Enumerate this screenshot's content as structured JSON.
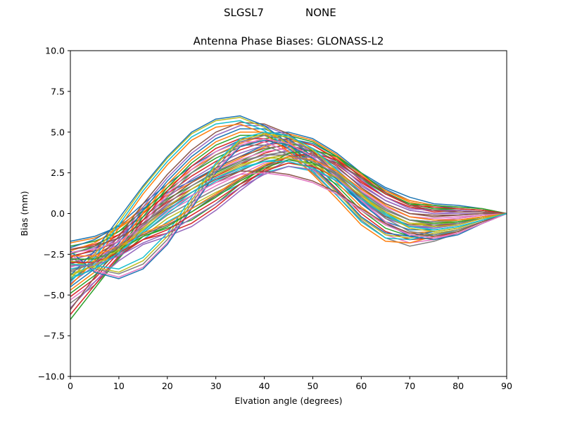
{
  "header": {
    "station": "SLGSL7",
    "radome": "NONE"
  },
  "chart_data": {
    "type": "line",
    "title": "Antenna Phase Biases: GLONASS-L2",
    "xlabel": "Elvation angle (degrees)",
    "ylabel": "Bias (mm)",
    "xlim": [
      0,
      90
    ],
    "ylim": [
      -10,
      10
    ],
    "xticks": [
      0,
      10,
      20,
      30,
      40,
      50,
      60,
      70,
      80,
      90
    ],
    "yticks": [
      -10.0,
      -7.5,
      -5.0,
      -2.5,
      0.0,
      2.5,
      5.0,
      7.5,
      10.0
    ],
    "ytick_labels": [
      "−10.0",
      "−7.5",
      "−5.0",
      "−2.5",
      "0.0",
      "2.5",
      "5.0",
      "7.5",
      "10.0"
    ],
    "grid": false,
    "x": [
      0,
      5,
      10,
      15,
      20,
      25,
      30,
      35,
      40,
      45,
      50,
      55,
      60,
      65,
      70,
      75,
      80,
      85,
      90
    ],
    "colors": [
      "#1f77b4",
      "#ff7f0e",
      "#2ca02c",
      "#d62728",
      "#9467bd",
      "#8c564b",
      "#e377c2",
      "#7f7f7f",
      "#bcbd22",
      "#17becf"
    ],
    "series": [
      {
        "values": [
          -1.7,
          -1.4,
          -0.8,
          0.3,
          1.3,
          2.0,
          2.8,
          3.5,
          4.2,
          4.6,
          4.3,
          3.5,
          2.4,
          1.5,
          0.8,
          0.5,
          0.3,
          0.2,
          0.0
        ]
      },
      {
        "values": [
          -1.8,
          -1.5,
          -0.9,
          0.1,
          1.1,
          1.9,
          2.7,
          3.4,
          4.1,
          4.5,
          4.2,
          3.4,
          2.3,
          1.4,
          0.7,
          0.4,
          0.3,
          0.2,
          0.0
        ]
      },
      {
        "values": [
          -2.0,
          -1.7,
          -1.1,
          -0.2,
          0.9,
          1.7,
          2.5,
          3.2,
          3.9,
          4.3,
          4.0,
          3.2,
          2.1,
          1.2,
          0.6,
          0.3,
          0.2,
          0.1,
          0.0
        ]
      },
      {
        "values": [
          -2.2,
          -1.9,
          -1.3,
          -0.4,
          0.7,
          1.5,
          2.3,
          3.0,
          3.7,
          4.1,
          3.8,
          3.0,
          1.9,
          1.0,
          0.4,
          0.2,
          0.1,
          0.1,
          0.0
        ]
      },
      {
        "values": [
          -2.4,
          -2.1,
          -1.5,
          -0.6,
          0.5,
          1.3,
          2.1,
          2.8,
          3.5,
          3.9,
          3.6,
          2.8,
          1.7,
          0.8,
          0.2,
          0.0,
          0.0,
          0.0,
          0.0
        ]
      },
      {
        "values": [
          -2.6,
          -2.3,
          -1.7,
          -0.8,
          0.3,
          1.1,
          1.9,
          2.6,
          3.3,
          3.7,
          3.4,
          2.6,
          1.5,
          0.6,
          0.0,
          -0.1,
          -0.1,
          0.0,
          0.0
        ]
      },
      {
        "values": [
          -2.8,
          -2.5,
          -1.9,
          -1.0,
          0.1,
          0.9,
          1.7,
          2.4,
          3.1,
          3.5,
          3.2,
          2.4,
          1.3,
          0.4,
          -0.2,
          -0.3,
          -0.2,
          -0.1,
          0.0
        ]
      },
      {
        "values": [
          -3.0,
          -2.7,
          -2.1,
          -1.2,
          -0.1,
          0.7,
          1.5,
          2.2,
          2.9,
          3.3,
          3.0,
          2.2,
          1.1,
          0.2,
          -0.4,
          -0.5,
          -0.3,
          -0.1,
          0.0
        ]
      },
      {
        "values": [
          -3.2,
          -2.9,
          -2.3,
          -1.4,
          -0.3,
          0.5,
          1.3,
          2.0,
          2.7,
          3.1,
          2.8,
          2.0,
          0.9,
          0.0,
          -0.6,
          -0.6,
          -0.4,
          -0.2,
          0.0
        ]
      },
      {
        "values": [
          -3.4,
          -3.1,
          -2.5,
          -1.6,
          -0.5,
          0.3,
          1.1,
          1.8,
          2.5,
          2.9,
          2.6,
          1.8,
          0.7,
          -0.2,
          -0.8,
          -0.8,
          -0.5,
          -0.2,
          0.0
        ]
      },
      {
        "values": [
          -2.1,
          -1.6,
          -0.7,
          0.6,
          1.8,
          2.9,
          3.8,
          4.5,
          4.9,
          5.0,
          4.6,
          3.7,
          2.5,
          1.6,
          1.0,
          0.6,
          0.5,
          0.3,
          0.0
        ]
      },
      {
        "values": [
          -2.3,
          -1.8,
          -0.9,
          0.4,
          1.6,
          2.7,
          3.6,
          4.3,
          4.8,
          4.9,
          4.5,
          3.6,
          2.4,
          1.4,
          0.8,
          0.5,
          0.4,
          0.3,
          0.0
        ]
      },
      {
        "values": [
          -2.5,
          -2.0,
          -1.1,
          0.2,
          1.4,
          2.5,
          3.4,
          4.1,
          4.6,
          4.8,
          4.4,
          3.5,
          2.2,
          1.2,
          0.6,
          0.3,
          0.3,
          0.2,
          0.0
        ]
      },
      {
        "values": [
          -2.7,
          -2.2,
          -1.3,
          0.0,
          1.2,
          2.3,
          3.2,
          3.9,
          4.4,
          4.6,
          4.2,
          3.3,
          2.0,
          1.0,
          0.4,
          0.1,
          0.2,
          0.1,
          0.0
        ]
      },
      {
        "values": [
          -2.9,
          -2.4,
          -1.5,
          -0.2,
          1.0,
          2.1,
          3.0,
          3.7,
          4.2,
          4.4,
          4.0,
          3.1,
          1.8,
          0.8,
          0.2,
          0.0,
          0.1,
          0.1,
          0.0
        ]
      },
      {
        "values": [
          -3.1,
          -2.6,
          -1.7,
          -0.4,
          0.8,
          1.9,
          2.8,
          3.5,
          4.0,
          4.2,
          3.8,
          2.9,
          1.6,
          0.6,
          0.0,
          -0.2,
          -0.1,
          0.0,
          0.0
        ]
      },
      {
        "values": [
          -3.3,
          -2.8,
          -1.9,
          -0.6,
          0.6,
          1.7,
          2.6,
          3.3,
          3.8,
          4.0,
          3.6,
          2.7,
          1.4,
          0.4,
          -0.2,
          -0.4,
          -0.3,
          -0.1,
          0.0
        ]
      },
      {
        "values": [
          -3.5,
          -3.0,
          -2.1,
          -0.8,
          0.4,
          1.5,
          2.4,
          3.1,
          3.6,
          3.8,
          3.4,
          2.5,
          1.2,
          0.2,
          -0.4,
          -0.5,
          -0.4,
          -0.2,
          0.0
        ]
      },
      {
        "values": [
          -3.7,
          -3.2,
          -2.3,
          -1.0,
          0.2,
          1.3,
          2.2,
          2.9,
          3.4,
          3.6,
          3.2,
          2.3,
          1.0,
          0.0,
          -0.6,
          -0.7,
          -0.5,
          -0.2,
          0.0
        ]
      },
      {
        "values": [
          -3.9,
          -3.4,
          -2.5,
          -1.2,
          0.0,
          1.1,
          2.0,
          2.7,
          3.2,
          3.4,
          3.0,
          2.1,
          0.8,
          -0.2,
          -0.8,
          -0.9,
          -0.6,
          -0.3,
          0.0
        ]
      },
      {
        "values": [
          -4.5,
          -3.4,
          -1.8,
          0.2,
          2.0,
          3.5,
          4.6,
          5.2,
          5.2,
          4.6,
          3.5,
          2.1,
          0.6,
          -0.5,
          -1.0,
          -1.0,
          -0.8,
          -0.4,
          0.0
        ]
      },
      {
        "values": [
          -4.7,
          -3.6,
          -2.0,
          0.0,
          1.8,
          3.3,
          4.4,
          5.0,
          5.0,
          4.4,
          3.3,
          1.9,
          0.4,
          -0.7,
          -1.2,
          -1.1,
          -0.9,
          -0.4,
          0.0
        ]
      },
      {
        "values": [
          -4.9,
          -3.8,
          -2.2,
          -0.2,
          1.6,
          3.1,
          4.2,
          4.8,
          4.8,
          4.2,
          3.1,
          1.7,
          0.2,
          -0.9,
          -1.4,
          -1.3,
          -1.0,
          -0.5,
          0.0
        ]
      },
      {
        "values": [
          -5.1,
          -4.0,
          -2.4,
          -0.4,
          1.4,
          2.9,
          4.0,
          4.6,
          4.6,
          4.0,
          2.9,
          1.5,
          0.0,
          -1.1,
          -1.6,
          -1.5,
          -1.1,
          -0.5,
          0.0
        ]
      },
      {
        "values": [
          -4.3,
          -3.2,
          -1.6,
          0.4,
          2.2,
          3.7,
          4.8,
          5.4,
          5.4,
          4.8,
          3.7,
          2.3,
          0.8,
          -0.3,
          -0.8,
          -0.8,
          -0.7,
          -0.3,
          0.0
        ]
      },
      {
        "values": [
          -4.1,
          -3.0,
          -1.4,
          0.6,
          2.4,
          3.9,
          5.0,
          5.6,
          5.5,
          4.9,
          3.8,
          2.4,
          0.9,
          -0.2,
          -0.7,
          -0.7,
          -0.6,
          -0.3,
          0.0
        ]
      },
      {
        "values": [
          -5.3,
          -4.2,
          -2.6,
          -0.6,
          1.2,
          2.7,
          3.8,
          4.4,
          4.4,
          3.8,
          2.7,
          1.3,
          -0.2,
          -1.3,
          -1.8,
          -1.6,
          -1.2,
          -0.6,
          0.0
        ]
      },
      {
        "values": [
          -5.5,
          -4.4,
          -2.8,
          -0.8,
          1.0,
          2.5,
          3.6,
          4.2,
          4.2,
          3.6,
          2.5,
          1.1,
          -0.4,
          -1.5,
          -2.0,
          -1.7,
          -1.2,
          -0.6,
          0.0
        ]
      },
      {
        "values": [
          -4.0,
          -2.5,
          -0.5,
          1.6,
          3.4,
          4.9,
          5.7,
          5.9,
          5.3,
          4.2,
          2.8,
          1.3,
          -0.3,
          -1.3,
          -1.5,
          -1.2,
          -1.0,
          -0.5,
          0.0
        ]
      },
      {
        "values": [
          -4.2,
          -2.7,
          -0.7,
          1.4,
          3.2,
          4.7,
          5.5,
          5.7,
          5.1,
          4.0,
          2.6,
          1.1,
          -0.5,
          -1.5,
          -1.6,
          -1.3,
          -1.1,
          -0.5,
          0.0
        ]
      },
      {
        "values": [
          -3.8,
          -2.3,
          -0.3,
          1.7,
          3.5,
          5.0,
          5.8,
          6.0,
          5.4,
          4.3,
          2.9,
          1.4,
          -0.2,
          -1.2,
          -1.4,
          -1.1,
          -0.9,
          -0.4,
          0.0
        ]
      },
      {
        "values": [
          -4.4,
          -2.9,
          -0.9,
          1.2,
          3.0,
          4.5,
          5.3,
          5.5,
          4.9,
          3.8,
          2.4,
          0.9,
          -0.7,
          -1.7,
          -1.8,
          -1.4,
          -1.1,
          -0.5,
          0.0
        ]
      },
      {
        "values": [
          -6.5,
          -4.6,
          -2.7,
          -1.4,
          -0.9,
          -0.4,
          0.6,
          1.8,
          2.9,
          3.7,
          3.9,
          3.5,
          2.5,
          1.3,
          0.6,
          0.5,
          0.4,
          0.3,
          0.0
        ]
      },
      {
        "values": [
          -6.2,
          -4.4,
          -2.6,
          -1.6,
          -1.2,
          -0.6,
          0.4,
          1.6,
          2.7,
          3.5,
          3.7,
          3.3,
          2.3,
          1.2,
          0.5,
          0.4,
          0.3,
          0.2,
          0.0
        ]
      },
      {
        "values": [
          -5.8,
          -4.2,
          -2.9,
          -1.9,
          -1.4,
          -0.8,
          0.2,
          1.4,
          2.5,
          3.3,
          3.5,
          3.1,
          2.1,
          1.0,
          0.3,
          0.2,
          0.2,
          0.1,
          0.0
        ]
      },
      {
        "values": [
          -5.9,
          -3.9,
          -2.0,
          -1.3,
          -0.7,
          0.1,
          1.1,
          2.1,
          2.9,
          3.5,
          3.6,
          3.1,
          2.2,
          1.3,
          0.5,
          0.2,
          0.1,
          0.1,
          0.0
        ]
      },
      {
        "values": [
          -2.5,
          -3.5,
          -3.9,
          -3.3,
          -1.8,
          0.4,
          2.6,
          4.2,
          4.6,
          4.3,
          3.5,
          2.2,
          0.8,
          -0.5,
          -1.3,
          -1.5,
          -1.2,
          -0.6,
          0.0
        ]
      },
      {
        "values": [
          -2.7,
          -3.4,
          -3.7,
          -3.1,
          -1.6,
          0.6,
          2.8,
          4.4,
          4.8,
          4.5,
          3.7,
          2.4,
          1.0,
          -0.3,
          -1.1,
          -1.3,
          -1.0,
          -0.5,
          0.0
        ]
      },
      {
        "values": [
          -2.9,
          -3.3,
          -3.6,
          -2.9,
          -1.4,
          0.8,
          3.0,
          4.5,
          4.9,
          4.7,
          3.9,
          2.6,
          1.2,
          -0.1,
          -0.9,
          -1.1,
          -0.9,
          -0.4,
          0.0
        ]
      },
      {
        "values": [
          -3.1,
          -3.2,
          -3.4,
          -2.7,
          -1.2,
          1.0,
          3.1,
          4.6,
          5.0,
          4.8,
          4.0,
          2.7,
          1.3,
          0.0,
          -0.8,
          -1.0,
          -0.8,
          -0.4,
          0.0
        ]
      },
      {
        "values": [
          -2.3,
          -3.6,
          -4.0,
          -3.4,
          -1.9,
          0.3,
          2.5,
          4.1,
          4.5,
          4.2,
          3.4,
          2.1,
          0.7,
          -0.6,
          -1.4,
          -1.6,
          -1.3,
          -0.6,
          0.0
        ]
      },
      {
        "values": [
          -2.6,
          -2.6,
          -2.0,
          -1.2,
          -0.6,
          0.3,
          1.2,
          2.2,
          3.0,
          3.5,
          3.3,
          2.6,
          1.5,
          0.5,
          -0.2,
          -0.4,
          -0.4,
          -0.2,
          0.0
        ]
      },
      {
        "values": [
          -2.8,
          -2.8,
          -2.2,
          -1.4,
          -0.8,
          0.1,
          1.0,
          2.0,
          2.8,
          3.3,
          3.1,
          2.4,
          1.3,
          0.3,
          -0.4,
          -0.6,
          -0.5,
          -0.3,
          0.0
        ]
      },
      {
        "values": [
          -3.0,
          -3.0,
          -2.4,
          -1.6,
          -1.0,
          -0.1,
          0.8,
          1.8,
          2.6,
          3.1,
          2.9,
          2.2,
          1.1,
          0.1,
          -0.6,
          -0.8,
          -0.6,
          -0.3,
          0.0
        ]
      },
      {
        "values": [
          -3.2,
          -3.2,
          -2.6,
          -1.8,
          -1.2,
          -0.3,
          0.6,
          1.6,
          2.4,
          2.9,
          2.7,
          2.0,
          0.9,
          -0.1,
          -0.8,
          -0.9,
          -0.7,
          -0.3,
          0.0
        ]
      },
      {
        "values": [
          -2.2,
          -2.0,
          -1.5,
          -0.6,
          0.4,
          1.3,
          2.1,
          2.6,
          2.6,
          2.4,
          2.0,
          1.3,
          0.3,
          -0.6,
          -1.2,
          -1.4,
          -1.1,
          -0.5,
          0.0
        ]
      },
      {
        "values": [
          -2.4,
          -2.2,
          -1.7,
          -0.8,
          0.2,
          1.1,
          1.9,
          2.4,
          2.5,
          2.3,
          1.9,
          1.2,
          0.2,
          -0.7,
          -1.3,
          -1.5,
          -1.2,
          -0.6,
          0.0
        ]
      },
      {
        "values": [
          -3.6,
          -3.0,
          -2.0,
          -0.7,
          0.6,
          1.7,
          2.6,
          3.2,
          3.6,
          3.6,
          3.2,
          2.4,
          1.3,
          0.3,
          -0.4,
          -0.7,
          -0.6,
          -0.3,
          0.0
        ]
      },
      {
        "values": [
          -3.8,
          -3.2,
          -2.2,
          -0.9,
          0.4,
          1.5,
          2.4,
          3.0,
          3.4,
          3.4,
          3.0,
          2.2,
          1.1,
          0.1,
          -0.6,
          -0.8,
          -0.7,
          -0.3,
          0.0
        ]
      },
      {
        "values": [
          -4.0,
          -3.4,
          -2.4,
          -1.1,
          0.2,
          1.3,
          2.2,
          2.8,
          3.2,
          3.2,
          2.8,
          2.0,
          0.9,
          -0.1,
          -0.8,
          -1.0,
          -0.8,
          -0.4,
          0.0
        ]
      }
    ]
  }
}
